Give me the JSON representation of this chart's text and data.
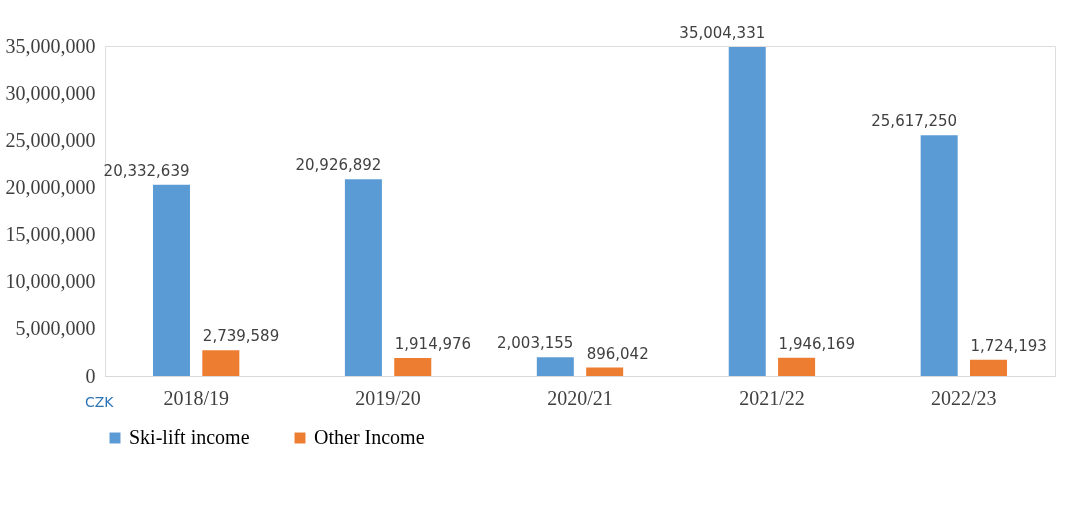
{
  "chart_data": {
    "type": "bar",
    "categories": [
      "2018/19",
      "2019/20",
      "2020/21",
      "2021/22",
      "2022/23"
    ],
    "series": [
      {
        "name": "Ski-lift income",
        "color": "#5b9bd5",
        "values": [
          20332639,
          20926892,
          2003155,
          35004331,
          25617250
        ],
        "value_labels": [
          "20,332,639",
          "20,926,892",
          "2,003,155",
          "35,004,331",
          "25,617,250"
        ]
      },
      {
        "name": "Other Income",
        "color": "#ed7d31",
        "values": [
          2739589,
          1914976,
          896042,
          1946169,
          1724193
        ],
        "value_labels": [
          "2,739,589",
          "1,914,976",
          "896,042",
          "1,946,169",
          "1,724,193"
        ]
      }
    ],
    "ylim": [
      0,
      35100000
    ],
    "yticks": [
      0,
      {
        "value": 5000000,
        "label": "5,000,000"
      },
      {
        "value": 10000000,
        "label": "10,000,000"
      },
      {
        "value": 15000000,
        "label": "15,000,000"
      },
      {
        "value": 20000000,
        "label": "20,000,000"
      },
      {
        "value": 25000000,
        "label": "25,000,000"
      },
      {
        "value": 30000000,
        "label": "30,000,000"
      },
      {
        "value": 35000000,
        "label": "35,000,000"
      }
    ],
    "legend": "bottom",
    "annotations": [
      "CZK"
    ]
  }
}
